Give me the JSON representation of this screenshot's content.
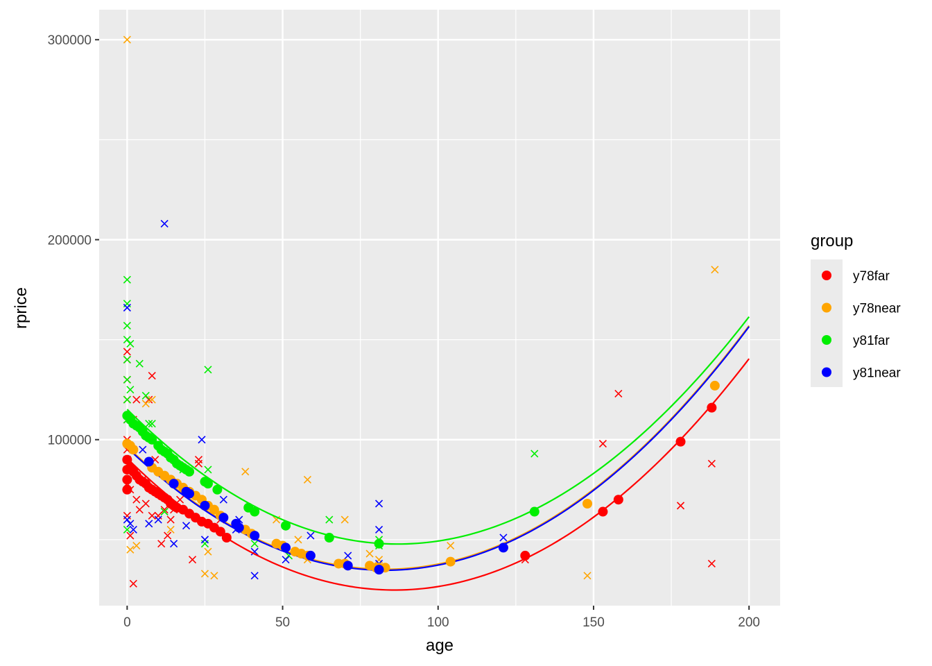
{
  "chart_data": {
    "type": "scatter",
    "title": "",
    "xlabel": "age",
    "ylabel": "rprice",
    "xlim": [
      -9,
      210
    ],
    "ylim": [
      17000,
      315000
    ],
    "x_ticks": [
      0,
      50,
      100,
      150,
      200
    ],
    "x_tick_labels": [
      "0",
      "50",
      "100",
      "150",
      "200"
    ],
    "y_ticks": [
      100000,
      200000,
      300000
    ],
    "y_tick_labels": [
      "100000",
      "200000",
      "300000"
    ],
    "grid": true,
    "legend": {
      "title": "group",
      "placement": "right"
    },
    "series": [
      {
        "name": "y78far",
        "color": "#ff0000",
        "fit": {
          "type": "quadratic",
          "x_range": [
            0,
            200
          ],
          "a": 8.9,
          "vertex_x": 86,
          "vertex_y": 24800
        },
        "observed": [
          [
            0,
            78000
          ],
          [
            0,
            85000
          ],
          [
            0,
            90000
          ],
          [
            0,
            95000
          ],
          [
            0,
            100000
          ],
          [
            0,
            110000
          ],
          [
            0,
            120000
          ],
          [
            0,
            130000
          ],
          [
            0,
            140000
          ],
          [
            0,
            144000
          ],
          [
            0,
            62000
          ],
          [
            1,
            75000
          ],
          [
            1,
            52000
          ],
          [
            2,
            28000
          ],
          [
            2,
            95000
          ],
          [
            2,
            110000
          ],
          [
            3,
            70000
          ],
          [
            3,
            120000
          ],
          [
            4,
            65000
          ],
          [
            5,
            80000
          ],
          [
            6,
            68000
          ],
          [
            7,
            120000
          ],
          [
            8,
            62000
          ],
          [
            8,
            132000
          ],
          [
            9,
            90000
          ],
          [
            10,
            62000
          ],
          [
            11,
            48000
          ],
          [
            12,
            65000
          ],
          [
            13,
            52000
          ],
          [
            14,
            60000
          ],
          [
            15,
            65000
          ],
          [
            17,
            70000
          ],
          [
            21,
            40000
          ],
          [
            23,
            90000
          ],
          [
            23,
            88000
          ],
          [
            30,
            60000
          ],
          [
            128,
            40000
          ],
          [
            153,
            98000
          ],
          [
            158,
            123000
          ],
          [
            178,
            67000
          ],
          [
            188,
            88000
          ],
          [
            188,
            38000
          ]
        ],
        "fitted": [
          [
            0,
            75000
          ],
          [
            0,
            80000
          ],
          [
            0,
            85000
          ],
          [
            0,
            90000
          ],
          [
            1,
            86000
          ],
          [
            2,
            84000
          ],
          [
            3,
            82000
          ],
          [
            4,
            80000
          ],
          [
            5,
            79000
          ],
          [
            6,
            78000
          ],
          [
            7,
            76000
          ],
          [
            8,
            75000
          ],
          [
            9,
            74000
          ],
          [
            10,
            73000
          ],
          [
            11,
            72000
          ],
          [
            12,
            71000
          ],
          [
            13,
            70000
          ],
          [
            14,
            68000
          ],
          [
            15,
            67000
          ],
          [
            16,
            66000
          ],
          [
            18,
            65000
          ],
          [
            20,
            63000
          ],
          [
            22,
            61000
          ],
          [
            24,
            59000
          ],
          [
            26,
            58000
          ],
          [
            28,
            56000
          ],
          [
            30,
            54000
          ],
          [
            32,
            51000
          ],
          [
            128,
            42000
          ],
          [
            153,
            64000
          ],
          [
            158,
            70000
          ],
          [
            178,
            99000
          ],
          [
            188,
            116000
          ]
        ]
      },
      {
        "name": "y78near",
        "color": "#ffa500",
        "fit": {
          "type": "quadratic",
          "x_range": [
            0,
            200
          ],
          "a": 8.9,
          "vertex_x": 83,
          "vertex_y": 35200
        },
        "observed": [
          [
            0,
            300000
          ],
          [
            0,
            120000
          ],
          [
            0,
            98000
          ],
          [
            1,
            45000
          ],
          [
            3,
            47000
          ],
          [
            6,
            118000
          ],
          [
            8,
            120000
          ],
          [
            14,
            55000
          ],
          [
            25,
            33000
          ],
          [
            26,
            44000
          ],
          [
            28,
            32000
          ],
          [
            38,
            84000
          ],
          [
            48,
            60000
          ],
          [
            55,
            50000
          ],
          [
            58,
            40000
          ],
          [
            58,
            80000
          ],
          [
            70,
            60000
          ],
          [
            78,
            43000
          ],
          [
            81,
            40000
          ],
          [
            104,
            47000
          ],
          [
            148,
            32000
          ],
          [
            189,
            185000
          ]
        ],
        "fitted": [
          [
            0,
            98000
          ],
          [
            1,
            97000
          ],
          [
            2,
            95000
          ],
          [
            8,
            86000
          ],
          [
            10,
            84000
          ],
          [
            12,
            82000
          ],
          [
            14,
            80000
          ],
          [
            16,
            78000
          ],
          [
            18,
            76000
          ],
          [
            20,
            74000
          ],
          [
            22,
            72000
          ],
          [
            24,
            70000
          ],
          [
            26,
            67000
          ],
          [
            28,
            65000
          ],
          [
            30,
            62000
          ],
          [
            38,
            55000
          ],
          [
            40,
            53000
          ],
          [
            48,
            48000
          ],
          [
            50,
            47000
          ],
          [
            54,
            44000
          ],
          [
            56,
            43000
          ],
          [
            58,
            42000
          ],
          [
            68,
            38000
          ],
          [
            70,
            38000
          ],
          [
            78,
            37000
          ],
          [
            80,
            36000
          ],
          [
            81,
            36000
          ],
          [
            83,
            36000
          ],
          [
            104,
            39000
          ],
          [
            148,
            68000
          ],
          [
            189,
            127000
          ]
        ]
      },
      {
        "name": "y81far",
        "color": "#00ee00",
        "fit": {
          "type": "quadratic",
          "x_range": [
            0,
            200
          ],
          "a": 8.9,
          "vertex_x": 87,
          "vertex_y": 47800
        },
        "observed": [
          [
            0,
            180000
          ],
          [
            0,
            168000
          ],
          [
            0,
            157000
          ],
          [
            0,
            150000
          ],
          [
            0,
            140000
          ],
          [
            0,
            130000
          ],
          [
            0,
            120000
          ],
          [
            0,
            110000
          ],
          [
            0,
            55000
          ],
          [
            1,
            148000
          ],
          [
            1,
            125000
          ],
          [
            4,
            138000
          ],
          [
            6,
            122000
          ],
          [
            7,
            108000
          ],
          [
            8,
            108000
          ],
          [
            12,
            64000
          ],
          [
            18,
            85000
          ],
          [
            25,
            48000
          ],
          [
            26,
            135000
          ],
          [
            26,
            85000
          ],
          [
            41,
            48000
          ],
          [
            52,
            42000
          ],
          [
            65,
            60000
          ],
          [
            81,
            50000
          ],
          [
            81,
            47000
          ],
          [
            131,
            93000
          ]
        ],
        "fitted": [
          [
            0,
            112000
          ],
          [
            1,
            110000
          ],
          [
            2,
            108000
          ],
          [
            3,
            107000
          ],
          [
            4,
            106000
          ],
          [
            5,
            104000
          ],
          [
            6,
            102000
          ],
          [
            7,
            101000
          ],
          [
            8,
            100000
          ],
          [
            10,
            97000
          ],
          [
            11,
            95000
          ],
          [
            12,
            94000
          ],
          [
            13,
            93000
          ],
          [
            14,
            91000
          ],
          [
            15,
            90000
          ],
          [
            16,
            88000
          ],
          [
            17,
            87000
          ],
          [
            18,
            86000
          ],
          [
            19,
            85000
          ],
          [
            20,
            84000
          ],
          [
            25,
            79000
          ],
          [
            26,
            78000
          ],
          [
            29,
            75000
          ],
          [
            39,
            66000
          ],
          [
            41,
            64000
          ],
          [
            51,
            57000
          ],
          [
            65,
            51000
          ],
          [
            81,
            48000
          ],
          [
            131,
            64000
          ]
        ]
      },
      {
        "name": "y81near",
        "color": "#0000ff",
        "fit": {
          "type": "quadratic",
          "x_range": [
            0,
            200
          ],
          "a": 8.9,
          "vertex_x": 83,
          "vertex_y": 34700
        },
        "observed": [
          [
            0,
            166000
          ],
          [
            0,
            90000
          ],
          [
            0,
            60000
          ],
          [
            1,
            58000
          ],
          [
            2,
            55000
          ],
          [
            5,
            95000
          ],
          [
            7,
            58000
          ],
          [
            10,
            60000
          ],
          [
            12,
            208000
          ],
          [
            15,
            48000
          ],
          [
            19,
            57000
          ],
          [
            24,
            100000
          ],
          [
            25,
            50000
          ],
          [
            31,
            70000
          ],
          [
            35,
            55000
          ],
          [
            36,
            60000
          ],
          [
            41,
            32000
          ],
          [
            41,
            44000
          ],
          [
            51,
            40000
          ],
          [
            59,
            52000
          ],
          [
            71,
            42000
          ],
          [
            81,
            68000
          ],
          [
            81,
            55000
          ],
          [
            81,
            38000
          ],
          [
            121,
            51000
          ]
        ],
        "fitted": [
          [
            7,
            89000
          ],
          [
            15,
            78000
          ],
          [
            19,
            74000
          ],
          [
            20,
            73000
          ],
          [
            25,
            67000
          ],
          [
            31,
            61000
          ],
          [
            35,
            58000
          ],
          [
            36,
            56000
          ],
          [
            41,
            52000
          ],
          [
            51,
            46000
          ],
          [
            59,
            42000
          ],
          [
            71,
            37000
          ],
          [
            81,
            35000
          ],
          [
            121,
            46000
          ]
        ]
      }
    ]
  }
}
